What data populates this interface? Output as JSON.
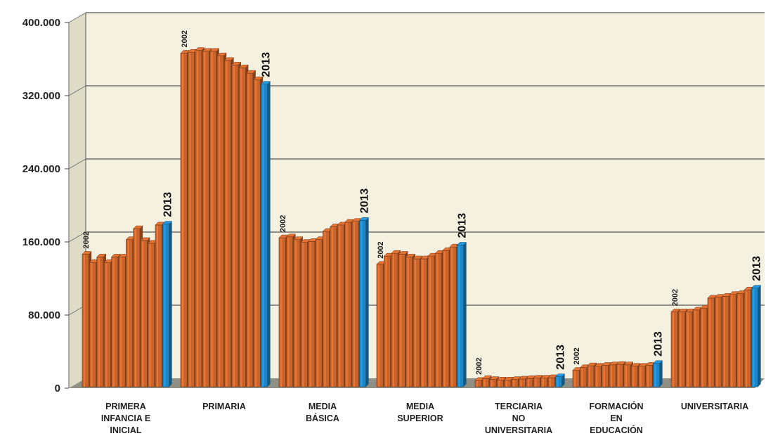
{
  "chart_data": {
    "type": "bar",
    "ylim": [
      0,
      400000
    ],
    "yticks": [
      "0",
      "80.000",
      "160.000",
      "240.000",
      "320.000",
      "400.000"
    ],
    "ytick_values": [
      0,
      80000,
      160000,
      240000,
      320000,
      400000
    ],
    "grid": true,
    "start_year": "2002",
    "end_year": "2013",
    "colors": {
      "bar": "#c9642c",
      "bar_last": "#1f86c6",
      "wall": "#f5f1e0",
      "floor": "#8f8f86"
    },
    "groups": [
      {
        "label_lines": [
          "PRIMERA",
          "INFANCIA E",
          "INICIAL"
        ],
        "values": [
          145000,
          136000,
          142000,
          136000,
          142000,
          142000,
          161000,
          173000,
          160000,
          157000,
          177000,
          178000
        ]
      },
      {
        "label_lines": [
          "PRIMARIA"
        ],
        "values": [
          365000,
          366000,
          368000,
          367000,
          367000,
          362000,
          357000,
          352000,
          349000,
          343000,
          336000,
          331000
        ]
      },
      {
        "label_lines": [
          "MEDIA",
          "BÁSICA"
        ],
        "values": [
          163000,
          164000,
          161000,
          158000,
          159000,
          161000,
          170000,
          175000,
          177000,
          180000,
          181000,
          182000
        ]
      },
      {
        "label_lines": [
          "MEDIA",
          "SUPERIOR"
        ],
        "values": [
          134000,
          143000,
          146000,
          145000,
          142000,
          140000,
          140000,
          143000,
          146000,
          149000,
          153000,
          155000
        ]
      },
      {
        "label_lines": [
          "TERCIARIA",
          "NO",
          "UNIVERSITARIA"
        ],
        "values": [
          7000,
          9000,
          8000,
          7500,
          7500,
          8000,
          8500,
          9000,
          9500,
          9500,
          10000,
          11000
        ]
      },
      {
        "label_lines": [
          "FORMACIÓN",
          "EN",
          "EDUCACIÓN"
        ],
        "values": [
          18000,
          21000,
          23000,
          22500,
          23500,
          24000,
          24500,
          24000,
          22500,
          22500,
          23500,
          25500
        ]
      },
      {
        "label_lines": [
          "UNIVERSITARIA"
        ],
        "values": [
          82000,
          82000,
          82000,
          84000,
          86000,
          97000,
          98000,
          99000,
          101000,
          102000,
          106000,
          108000
        ]
      }
    ]
  }
}
